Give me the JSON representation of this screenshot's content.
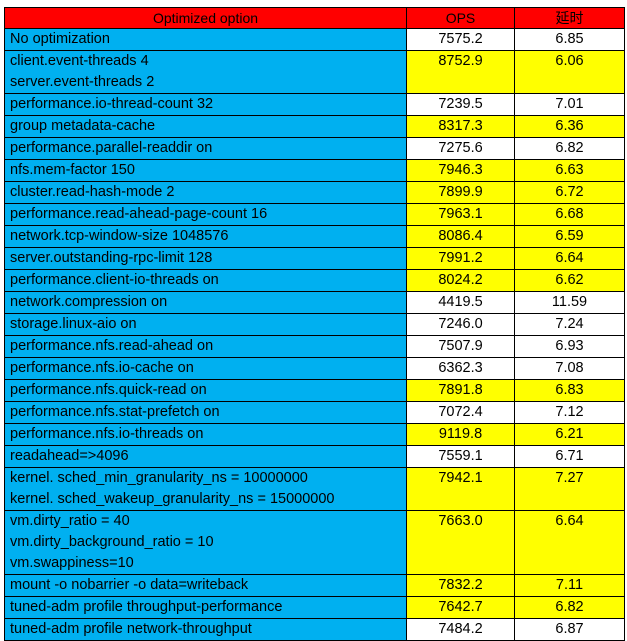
{
  "headers": {
    "option": "Optimized option",
    "ops": "OPS",
    "latency": "延时"
  },
  "rows": [
    {
      "option": [
        "No optimization"
      ],
      "ops": "7575.2",
      "latency": "6.85",
      "highlight": false
    },
    {
      "option": [
        "client.event-threads 4",
        "server.event-threads 2"
      ],
      "ops": "8752.9",
      "latency": "6.06",
      "highlight": true
    },
    {
      "option": [
        "performance.io-thread-count 32"
      ],
      "ops": "7239.5",
      "latency": "7.01",
      "highlight": false
    },
    {
      "option": [
        "group metadata-cache"
      ],
      "ops": "8317.3",
      "latency": "6.36",
      "highlight": true
    },
    {
      "option": [
        "performance.parallel-readdir on"
      ],
      "ops": "7275.6",
      "latency": "6.82",
      "highlight": false
    },
    {
      "option": [
        "nfs.mem-factor 150"
      ],
      "ops": "7946.3",
      "latency": "6.63",
      "highlight": true
    },
    {
      "option": [
        "cluster.read-hash-mode  2"
      ],
      "ops": "7899.9",
      "latency": "6.72",
      "highlight": true
    },
    {
      "option": [
        "performance.read-ahead-page-count   16"
      ],
      "ops": "7963.1",
      "latency": "6.68",
      "highlight": true
    },
    {
      "option": [
        "network.tcp-window-size 1048576"
      ],
      "ops": "8086.4",
      "latency": "6.59",
      "highlight": true
    },
    {
      "option": [
        "server.outstanding-rpc-limit 128"
      ],
      "ops": "7991.2",
      "latency": "6.64",
      "highlight": true
    },
    {
      "option": [
        "performance.client-io-threads on"
      ],
      "ops": "8024.2",
      "latency": "6.62",
      "highlight": true
    },
    {
      "option": [
        "network.compression on"
      ],
      "ops": "4419.5",
      "latency": "11.59",
      "highlight": false
    },
    {
      "option": [
        "storage.linux-aio on"
      ],
      "ops": "7246.0",
      "latency": "7.24",
      "highlight": false
    },
    {
      "option": [
        "performance.nfs.read-ahead on"
      ],
      "ops": "7507.9",
      "latency": "6.93",
      "highlight": false
    },
    {
      "option": [
        "performance.nfs.io-cache on"
      ],
      "ops": "6362.3",
      "latency": "7.08",
      "highlight": false
    },
    {
      "option": [
        "performance.nfs.quick-read on"
      ],
      "ops": "7891.8",
      "latency": "6.83",
      "highlight": true
    },
    {
      "option": [
        "performance.nfs.stat-prefetch on"
      ],
      "ops": "7072.4",
      "latency": "7.12",
      "highlight": false
    },
    {
      "option": [
        "performance.nfs.io-threads on"
      ],
      "ops": "9119.8",
      "latency": "6.21",
      "highlight": true
    },
    {
      "option": [
        "readahead=>4096"
      ],
      "ops": "7559.1",
      "latency": "6.71",
      "highlight": false
    },
    {
      "option": [
        "kernel. sched_min_granularity_ns = 10000000",
        "kernel. sched_wakeup_granularity_ns = 15000000"
      ],
      "ops": "7942.1",
      "latency": "7.27",
      "highlight": true
    },
    {
      "option": [
        "vm.dirty_ratio = 40",
        "vm.dirty_background_ratio = 10",
        "vm.swappiness=10"
      ],
      "ops": "7663.0",
      "latency": "6.64",
      "highlight": true
    },
    {
      "option": [
        "mount  -o nobarrier -o data=writeback"
      ],
      "ops": "7832.2",
      "latency": "7.11",
      "highlight": true
    },
    {
      "option": [
        "tuned-adm profile throughput-performance"
      ],
      "ops": "7642.7",
      "latency": "6.82",
      "highlight": true
    },
    {
      "option": [
        "tuned-adm profile network-throughput"
      ],
      "ops": "7484.2",
      "latency": "6.87",
      "highlight": false
    }
  ]
}
